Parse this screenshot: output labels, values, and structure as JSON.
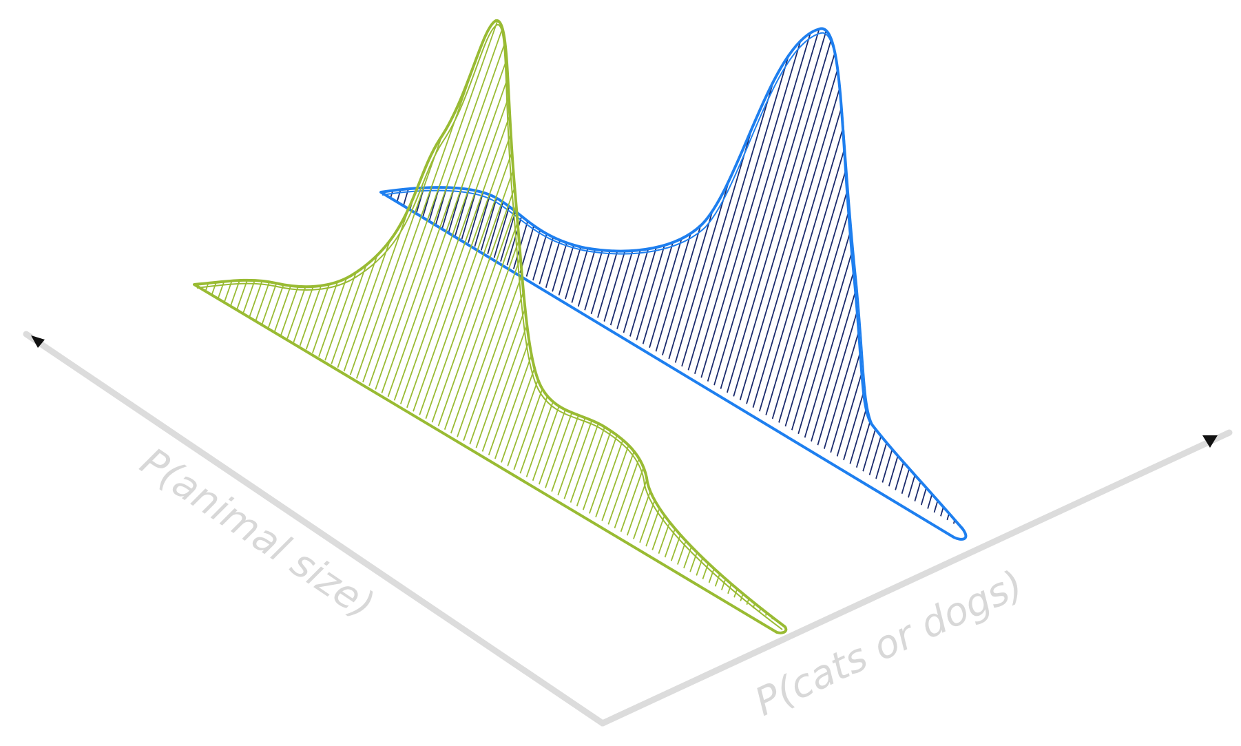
{
  "diagram": {
    "axes": [
      {
        "id": "animal-size",
        "label": "P(animal size)"
      },
      {
        "id": "cats-or-dogs",
        "label": "P(cats or dogs)"
      }
    ],
    "distributions": [
      {
        "id": "green",
        "color": "#99bb33",
        "hatch_color": "#99bb33"
      },
      {
        "id": "blue",
        "color": "#1e7fef",
        "hatch_color": "#1a2a6c"
      }
    ],
    "axis_color": "#dcdcdc",
    "axis_label_color": "#d8d8d8",
    "arrowhead_color": "#111111"
  }
}
